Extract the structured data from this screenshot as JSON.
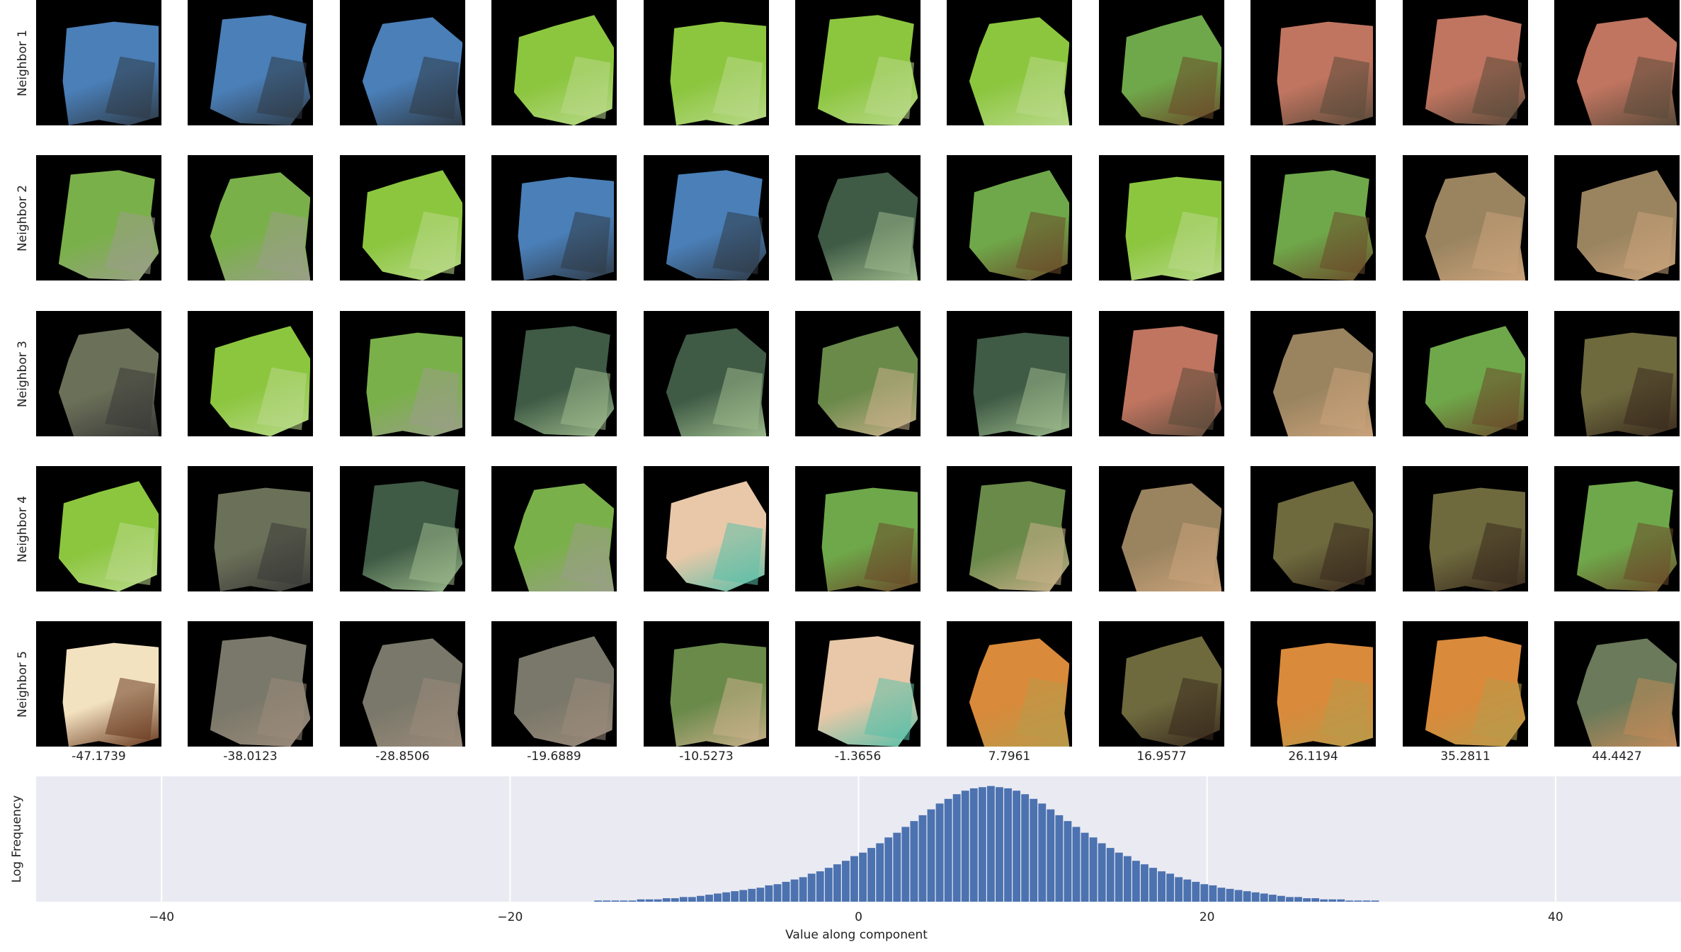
{
  "rows": [
    {
      "label": "Neighbor 1",
      "tiles": [
        {
          "icon": "water-rock-patch",
          "main": "#4a7fb8",
          "accent": "#2f3a45"
        },
        {
          "icon": "water-rock-patch",
          "main": "#4a7fb8",
          "accent": "#2f3a45"
        },
        {
          "icon": "water-rock-patch",
          "main": "#4a7fb8",
          "accent": "#2f3a45"
        },
        {
          "icon": "green-leaf-patch",
          "main": "#8cc63f",
          "accent": "#b9d98a"
        },
        {
          "icon": "green-leaf-patch",
          "main": "#8cc63f",
          "accent": "#b9d98a"
        },
        {
          "icon": "green-leaf-patch",
          "main": "#8cc63f",
          "accent": "#b9d98a"
        },
        {
          "icon": "green-leaf-patch",
          "main": "#8cc63f",
          "accent": "#b9d98a"
        },
        {
          "icon": "grass-deer-patch",
          "main": "#6fa84a",
          "accent": "#6b4a2a"
        },
        {
          "icon": "red-rock-patch",
          "main": "#c07560",
          "accent": "#5a4a3a"
        },
        {
          "icon": "red-rock-patch",
          "main": "#c07560",
          "accent": "#5a4a3a"
        },
        {
          "icon": "red-rock-patch",
          "main": "#c07560",
          "accent": "#5a4a3a"
        }
      ]
    },
    {
      "label": "Neighbor 2",
      "tiles": [
        {
          "icon": "grass-stone-patch",
          "main": "#7ab04a",
          "accent": "#9a9f88"
        },
        {
          "icon": "grass-stone-patch",
          "main": "#7ab04a",
          "accent": "#9a9f88"
        },
        {
          "icon": "green-leaf-patch",
          "main": "#8cc63f",
          "accent": "#b9d98a"
        },
        {
          "icon": "water-rock-patch",
          "main": "#4a7fb8",
          "accent": "#2f3a45"
        },
        {
          "icon": "water-rock-patch",
          "main": "#4a7fb8",
          "accent": "#2f3a45"
        },
        {
          "icon": "dark-stem-patch",
          "main": "#3f5a45",
          "accent": "#9ab88a"
        },
        {
          "icon": "grass-deer-patch",
          "main": "#6fa84a",
          "accent": "#6b4a2a"
        },
        {
          "icon": "green-leaf-patch",
          "main": "#8cc63f",
          "accent": "#b9d98a"
        },
        {
          "icon": "grass-deer-patch",
          "main": "#6fa84a",
          "accent": "#6b4a2a"
        },
        {
          "icon": "dry-grass-antelope-patch",
          "main": "#9a8460",
          "accent": "#c9a27a"
        },
        {
          "icon": "dry-grass-antelope-patch",
          "main": "#9a8460",
          "accent": "#c9a27a"
        }
      ]
    },
    {
      "label": "Neighbor 3",
      "tiles": [
        {
          "icon": "mossy-rock-patch",
          "main": "#6b7058",
          "accent": "#3a3a38"
        },
        {
          "icon": "green-leaf-patch",
          "main": "#8cc63f",
          "accent": "#b9d98a"
        },
        {
          "icon": "grass-stone-patch",
          "main": "#7ab04a",
          "accent": "#9a9f88"
        },
        {
          "icon": "dark-stem-patch",
          "main": "#3f5a45",
          "accent": "#9ab88a"
        },
        {
          "icon": "dark-stem-patch",
          "main": "#3f5a45",
          "accent": "#9ab88a"
        },
        {
          "icon": "blurry-animal-patch",
          "main": "#6a8a4a",
          "accent": "#c9b08a"
        },
        {
          "icon": "dark-stem-patch",
          "main": "#3f5a45",
          "accent": "#9ab88a"
        },
        {
          "icon": "red-rock-patch",
          "main": "#c07560",
          "accent": "#5a4a3a"
        },
        {
          "icon": "dry-grass-antelope-patch",
          "main": "#9a8460",
          "accent": "#c9a27a"
        },
        {
          "icon": "grass-deer-patch",
          "main": "#6fa84a",
          "accent": "#6b4a2a"
        },
        {
          "icon": "dry-grass-trunk-patch",
          "main": "#6e6a3e",
          "accent": "#3a2a1e"
        }
      ]
    },
    {
      "label": "Neighbor 4",
      "tiles": [
        {
          "icon": "green-leaf-patch",
          "main": "#8cc63f",
          "accent": "#b9d98a"
        },
        {
          "icon": "mossy-rock-patch",
          "main": "#6b7058",
          "accent": "#3a3a38"
        },
        {
          "icon": "dark-stem-patch",
          "main": "#3f5a45",
          "accent": "#9ab88a"
        },
        {
          "icon": "grass-stone-patch",
          "main": "#7ab04a",
          "accent": "#9a9f88"
        },
        {
          "icon": "pale-skin-teal-patch",
          "main": "#e8c8a8",
          "accent": "#5abfa8"
        },
        {
          "icon": "grass-deer-patch",
          "main": "#6fa84a",
          "accent": "#6b4a2a"
        },
        {
          "icon": "blurry-animal-patch",
          "main": "#6a8a4a",
          "accent": "#c9b08a"
        },
        {
          "icon": "dry-grass-antelope-patch",
          "main": "#9a8460",
          "accent": "#c9a27a"
        },
        {
          "icon": "dry-grass-trunk-patch",
          "main": "#6e6a3e",
          "accent": "#3a2a1e"
        },
        {
          "icon": "dry-grass-trunk-patch",
          "main": "#6e6a3e",
          "accent": "#3a2a1e"
        },
        {
          "icon": "grass-deer-patch",
          "main": "#6fa84a",
          "accent": "#6b4a2a"
        }
      ]
    },
    {
      "label": "Neighbor 5",
      "tiles": [
        {
          "icon": "cream-brown-patch",
          "main": "#f3e2c0",
          "accent": "#6a3a20"
        },
        {
          "icon": "gray-stone-patch",
          "main": "#7a786a",
          "accent": "#9a8a7a"
        },
        {
          "icon": "gray-stone-patch",
          "main": "#7a786a",
          "accent": "#9a8a7a"
        },
        {
          "icon": "gray-stone-patch",
          "main": "#7a786a",
          "accent": "#9a8a7a"
        },
        {
          "icon": "blurry-animal-patch",
          "main": "#6a8a4a",
          "accent": "#c9b08a"
        },
        {
          "icon": "pale-skin-teal-patch",
          "main": "#e8c8a8",
          "accent": "#5abfa8"
        },
        {
          "icon": "orange-snake-patch",
          "main": "#d98a3a",
          "accent": "#b89a4a"
        },
        {
          "icon": "dry-grass-trunk-patch",
          "main": "#6e6a3e",
          "accent": "#3a2a1e"
        },
        {
          "icon": "orange-snake-patch",
          "main": "#d98a3a",
          "accent": "#b89a4a"
        },
        {
          "icon": "orange-snake-patch",
          "main": "#d98a3a",
          "accent": "#b89a4a"
        },
        {
          "icon": "field-track-patch",
          "main": "#6a7a5a",
          "accent": "#c08a5a"
        }
      ]
    }
  ],
  "column_values": [
    "-47.1739",
    "-38.0123",
    "-28.8506",
    "-19.6889",
    "-10.5273",
    "-1.3656",
    "7.7961",
    "16.9577",
    "26.1194",
    "35.2811",
    "44.4427"
  ],
  "chart_data": {
    "type": "bar",
    "xlabel": "Value along component",
    "ylabel": "Log Frequency",
    "xlim": [
      -47.2,
      47.2
    ],
    "xticks": [
      -40,
      -20,
      0,
      20,
      40
    ],
    "ylim": [
      0,
      1
    ],
    "grid": true,
    "bin_width": 0.49,
    "bin_start": -15.19,
    "values": [
      0.01,
      0.01,
      0.01,
      0.01,
      0.01,
      0.02,
      0.02,
      0.02,
      0.03,
      0.03,
      0.04,
      0.04,
      0.05,
      0.06,
      0.07,
      0.08,
      0.09,
      0.1,
      0.11,
      0.12,
      0.14,
      0.15,
      0.17,
      0.19,
      0.21,
      0.24,
      0.26,
      0.29,
      0.32,
      0.35,
      0.39,
      0.42,
      0.46,
      0.5,
      0.55,
      0.59,
      0.64,
      0.69,
      0.74,
      0.79,
      0.84,
      0.88,
      0.92,
      0.95,
      0.97,
      0.98,
      0.99,
      0.98,
      0.97,
      0.95,
      0.92,
      0.88,
      0.84,
      0.79,
      0.74,
      0.69,
      0.64,
      0.59,
      0.55,
      0.5,
      0.46,
      0.42,
      0.39,
      0.35,
      0.32,
      0.29,
      0.26,
      0.24,
      0.21,
      0.19,
      0.17,
      0.15,
      0.14,
      0.12,
      0.11,
      0.1,
      0.09,
      0.08,
      0.07,
      0.06,
      0.05,
      0.04,
      0.04,
      0.03,
      0.03,
      0.02,
      0.02,
      0.02,
      0.01,
      0.01,
      0.01,
      0.01
    ],
    "bar_color": "#4c72b0",
    "background": "#eaeaf2"
  }
}
